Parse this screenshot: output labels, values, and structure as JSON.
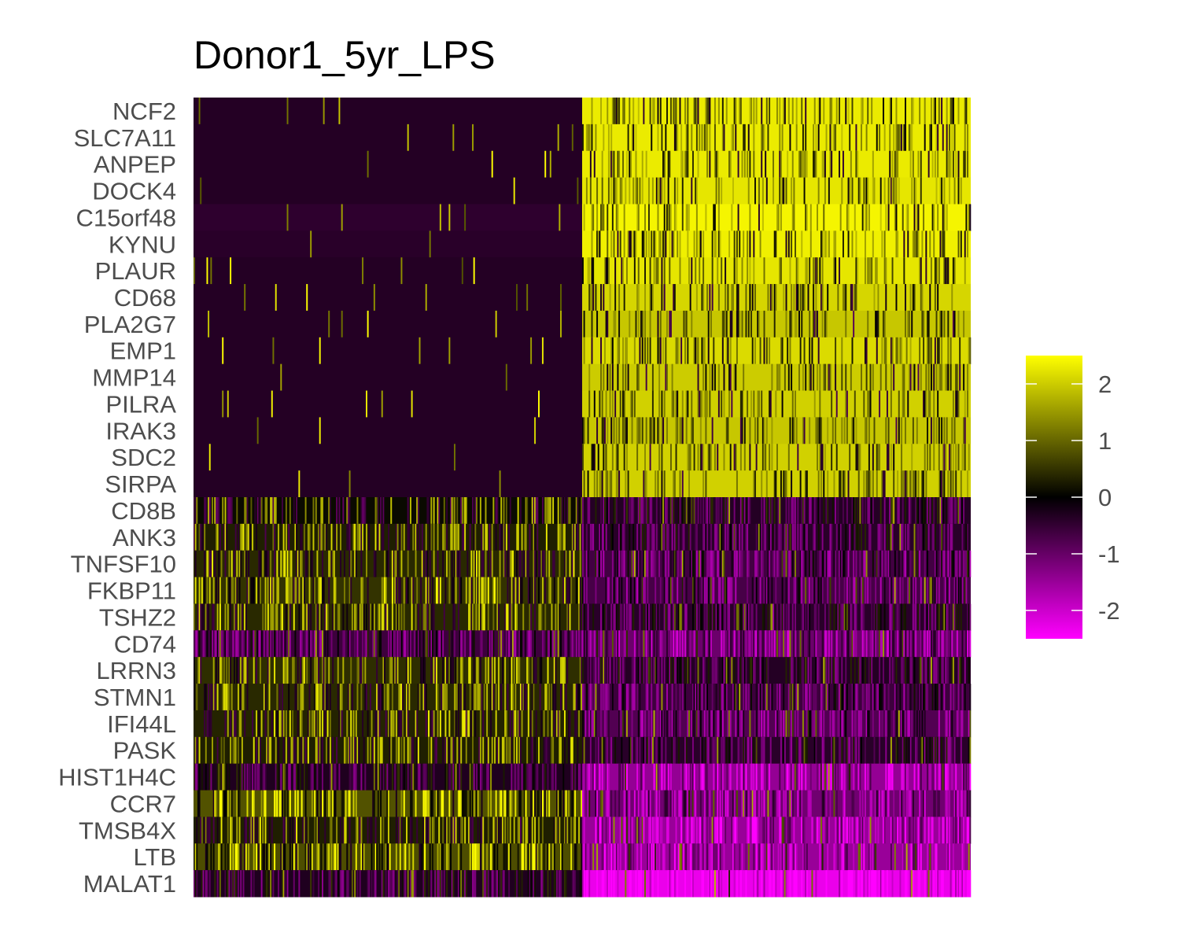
{
  "chart_data": {
    "type": "heatmap",
    "title": "Donor1_5yr_LPS",
    "xlabel": "",
    "ylabel": "",
    "genes": [
      "NCF2",
      "SLC7A11",
      "ANPEP",
      "DOCK4",
      "C15orf48",
      "KYNU",
      "PLAUR",
      "CD68",
      "PLA2G7",
      "EMP1",
      "MMP14",
      "PILRA",
      "IRAK3",
      "SDC2",
      "SIRPA",
      "CD8B",
      "ANK3",
      "TNFSF10",
      "FKBP11",
      "TSHZ2",
      "CD74",
      "LRRN3",
      "STMN1",
      "IFI44L",
      "PASK",
      "HIST1H4C",
      "CCR7",
      "TMSB4X",
      "LTB",
      "MALAT1"
    ],
    "groups": [
      {
        "columns": 300
      },
      {
        "columns": 300
      }
    ],
    "approx_mean_scaled_expression": {
      "NCF2": [
        -0.35,
        2.3
      ],
      "SLC7A11": [
        -0.35,
        2.3
      ],
      "ANPEP": [
        -0.35,
        2.3
      ],
      "DOCK4": [
        -0.35,
        2.25
      ],
      "C15orf48": [
        -0.45,
        2.4
      ],
      "KYNU": [
        -0.4,
        2.35
      ],
      "PLAUR": [
        -0.35,
        2.25
      ],
      "CD68": [
        -0.35,
        2.1
      ],
      "PLA2G7": [
        -0.35,
        1.95
      ],
      "EMP1": [
        -0.35,
        2.15
      ],
      "MMP14": [
        -0.35,
        2.0
      ],
      "PILRA": [
        -0.35,
        2.05
      ],
      "IRAK3": [
        -0.35,
        1.95
      ],
      "SDC2": [
        -0.35,
        2.05
      ],
      "SIRPA": [
        -0.35,
        2.05
      ],
      "CD8B": [
        0.1,
        -0.35
      ],
      "ANK3": [
        0.3,
        -0.4
      ],
      "TNFSF10": [
        0.4,
        -0.65
      ],
      "FKBP11": [
        0.5,
        -0.7
      ],
      "TSHZ2": [
        0.4,
        -0.4
      ],
      "CD74": [
        -0.6,
        -1.05
      ],
      "LRRN3": [
        0.45,
        -0.35
      ],
      "STMN1": [
        0.4,
        -0.6
      ],
      "IFI44L": [
        0.35,
        -0.8
      ],
      "PASK": [
        0.3,
        -0.4
      ],
      "HIST1H4C": [
        -0.3,
        -1.45
      ],
      "CCR7": [
        0.8,
        -1.1
      ],
      "TMSB4X": [
        0.3,
        -1.5
      ],
      "LTB": [
        0.75,
        -1.5
      ],
      "MALAT1": [
        -0.3,
        -2.3
      ]
    },
    "color_scale": {
      "stops": [
        {
          "value": -2.5,
          "color": "#ff00ff"
        },
        {
          "value": 0,
          "color": "#000000"
        },
        {
          "value": 2.5,
          "color": "#ffff00"
        }
      ],
      "legend_breaks": [
        2,
        1,
        0,
        -1,
        -2
      ],
      "legend_labels": [
        "2",
        "1",
        "0",
        "-1",
        "-2"
      ]
    },
    "legend_position": "right"
  }
}
